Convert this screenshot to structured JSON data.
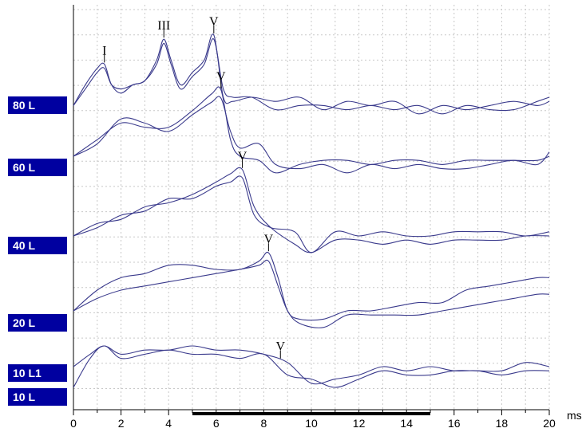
{
  "chart_data": {
    "type": "line",
    "title": "",
    "xlabel": "ms",
    "ylabel": "",
    "xlim": [
      0,
      20
    ],
    "x_ticks": [
      "0",
      "2",
      "4",
      "6",
      "8",
      "10",
      "12",
      "14",
      "16",
      "18",
      "20"
    ],
    "grid": true,
    "analysis_window_ms": [
      5,
      15
    ],
    "series": [
      {
        "name": "80 L",
        "traces": [
          [
            [
              0,
              -2
            ],
            [
              0.5,
              3
            ],
            [
              1,
              7
            ],
            [
              1.3,
              8
            ],
            [
              1.6,
              3
            ],
            [
              2,
              1
            ],
            [
              2.5,
              3
            ],
            [
              3,
              4
            ],
            [
              3.5,
              9
            ],
            [
              3.8,
              14
            ],
            [
              4.1,
              9
            ],
            [
              4.5,
              3
            ],
            [
              5,
              6
            ],
            [
              5.5,
              9
            ],
            [
              5.9,
              15
            ],
            [
              6.3,
              0
            ],
            [
              6.7,
              -1
            ],
            [
              7.5,
              0
            ],
            [
              8.5,
              -1
            ],
            [
              9.5,
              0
            ],
            [
              10.5,
              -3
            ],
            [
              11.5,
              -1
            ],
            [
              12.5,
              -2
            ],
            [
              13.5,
              -1
            ],
            [
              14.5,
              -4
            ],
            [
              15.5,
              -2
            ],
            [
              16.5,
              -3
            ],
            [
              17.5,
              -2
            ],
            [
              18.5,
              -1
            ],
            [
              19.5,
              -2
            ],
            [
              20,
              -1
            ]
          ],
          [
            [
              0,
              -2
            ],
            [
              0.5,
              2
            ],
            [
              1,
              6
            ],
            [
              1.3,
              7
            ],
            [
              1.6,
              3
            ],
            [
              2,
              2
            ],
            [
              2.5,
              3
            ],
            [
              3,
              4
            ],
            [
              3.5,
              8
            ],
            [
              3.8,
              13
            ],
            [
              4.1,
              8
            ],
            [
              4.5,
              2
            ],
            [
              5,
              5
            ],
            [
              5.5,
              8
            ],
            [
              5.9,
              14
            ],
            [
              6.3,
              2
            ],
            [
              6.7,
              0
            ],
            [
              7.5,
              0
            ],
            [
              8.5,
              -3
            ],
            [
              9.5,
              -2
            ],
            [
              10.5,
              -2
            ],
            [
              11.5,
              -3
            ],
            [
              12.5,
              -2
            ],
            [
              13.5,
              -3
            ],
            [
              14.5,
              -2
            ],
            [
              15.5,
              -4
            ],
            [
              16.5,
              -2
            ],
            [
              17.5,
              -3
            ],
            [
              18.5,
              -3
            ],
            [
              19.5,
              -1
            ],
            [
              20,
              0
            ]
          ]
        ]
      },
      {
        "name": "60 L",
        "traces": [
          [
            [
              0,
              0
            ],
            [
              1,
              4
            ],
            [
              2,
              8
            ],
            [
              3,
              7
            ],
            [
              4,
              7
            ],
            [
              5,
              11
            ],
            [
              5.8,
              15
            ],
            [
              6.2,
              16
            ],
            [
              6.6,
              4
            ],
            [
              7,
              0
            ],
            [
              7.8,
              -1
            ],
            [
              8.5,
              -4
            ],
            [
              9.5,
              -2
            ],
            [
              10.5,
              -1
            ],
            [
              11.5,
              -1
            ],
            [
              12.5,
              -2
            ],
            [
              13.5,
              -1
            ],
            [
              14.5,
              -1
            ],
            [
              15.5,
              -2
            ],
            [
              16.5,
              -1
            ],
            [
              17.5,
              -1
            ],
            [
              18.5,
              -1
            ],
            [
              19.5,
              -1
            ],
            [
              20,
              0
            ]
          ],
          [
            [
              0,
              0
            ],
            [
              1,
              3
            ],
            [
              2,
              9
            ],
            [
              3,
              8
            ],
            [
              4,
              6
            ],
            [
              5,
              10
            ],
            [
              5.8,
              13
            ],
            [
              6.2,
              14
            ],
            [
              6.6,
              6
            ],
            [
              7,
              2
            ],
            [
              7.8,
              3
            ],
            [
              8.5,
              -2
            ],
            [
              9.5,
              -3
            ],
            [
              10.5,
              -2
            ],
            [
              11.5,
              -4
            ],
            [
              12.5,
              -2
            ],
            [
              13.5,
              -3
            ],
            [
              14.5,
              -2
            ],
            [
              15.5,
              -3
            ],
            [
              16.5,
              -3
            ],
            [
              17.5,
              -2
            ],
            [
              18.5,
              -1
            ],
            [
              19.5,
              -2
            ],
            [
              20,
              1
            ]
          ]
        ]
      },
      {
        "name": "40 L",
        "traces": [
          [
            [
              0,
              0
            ],
            [
              1,
              3
            ],
            [
              2,
              4
            ],
            [
              3,
              7
            ],
            [
              4,
              8
            ],
            [
              5,
              10
            ],
            [
              6,
              13
            ],
            [
              6.6,
              15
            ],
            [
              7.1,
              16
            ],
            [
              7.6,
              7
            ],
            [
              8.3,
              2
            ],
            [
              9.3,
              -2
            ],
            [
              10,
              -4
            ],
            [
              11,
              -1
            ],
            [
              12,
              -1
            ],
            [
              13,
              -2
            ],
            [
              14,
              -1
            ],
            [
              15,
              -2
            ],
            [
              16,
              -1
            ],
            [
              17,
              -1
            ],
            [
              18,
              -1
            ],
            [
              19,
              0
            ],
            [
              20,
              0
            ]
          ],
          [
            [
              0,
              0
            ],
            [
              1,
              2
            ],
            [
              2,
              5
            ],
            [
              3,
              6
            ],
            [
              4,
              9
            ],
            [
              5,
              9
            ],
            [
              6,
              12
            ],
            [
              6.6,
              13
            ],
            [
              7.1,
              14
            ],
            [
              7.6,
              5
            ],
            [
              8.3,
              2
            ],
            [
              9.3,
              1
            ],
            [
              10,
              -4
            ],
            [
              11,
              1
            ],
            [
              12,
              0
            ],
            [
              13,
              1
            ],
            [
              14,
              0
            ],
            [
              15,
              0
            ],
            [
              16,
              1
            ],
            [
              17,
              1
            ],
            [
              18,
              1
            ],
            [
              19,
              0
            ],
            [
              20,
              1
            ]
          ]
        ]
      },
      {
        "name": "20 L",
        "traces": [
          [
            [
              0,
              0
            ],
            [
              1,
              5
            ],
            [
              2,
              8
            ],
            [
              3,
              9
            ],
            [
              4,
              11
            ],
            [
              5,
              11
            ],
            [
              6,
              10
            ],
            [
              7,
              10
            ],
            [
              7.8,
              12
            ],
            [
              8.2,
              14
            ],
            [
              8.6,
              8
            ],
            [
              9,
              0
            ],
            [
              9.5,
              -2
            ],
            [
              10.5,
              -2
            ],
            [
              11.5,
              0
            ],
            [
              12.5,
              0
            ],
            [
              13.5,
              1
            ],
            [
              14.5,
              2
            ],
            [
              15.5,
              2
            ],
            [
              16.5,
              5
            ],
            [
              17.5,
              6
            ],
            [
              18.5,
              7
            ],
            [
              19.5,
              8
            ],
            [
              20,
              8
            ]
          ],
          [
            [
              0,
              0
            ],
            [
              1,
              3
            ],
            [
              2,
              5
            ],
            [
              3,
              6
            ],
            [
              4,
              7
            ],
            [
              5,
              8
            ],
            [
              6,
              9
            ],
            [
              7,
              10
            ],
            [
              7.8,
              11
            ],
            [
              8.2,
              12
            ],
            [
              8.6,
              6
            ],
            [
              9,
              0
            ],
            [
              9.5,
              -3
            ],
            [
              10.5,
              -4
            ],
            [
              11.5,
              -1
            ],
            [
              12.5,
              -1
            ],
            [
              13.5,
              -1
            ],
            [
              14.5,
              -1
            ],
            [
              15.5,
              0
            ],
            [
              16.5,
              1
            ],
            [
              17.5,
              2
            ],
            [
              18.5,
              3
            ],
            [
              19.5,
              4
            ],
            [
              20,
              4
            ]
          ]
        ]
      },
      {
        "name": "10 L1",
        "traces": [
          [
            [
              0,
              0
            ],
            [
              0.7,
              3
            ],
            [
              1.3,
              5
            ],
            [
              2,
              3
            ],
            [
              3,
              4
            ],
            [
              4,
              4
            ],
            [
              5,
              5
            ],
            [
              6,
              4
            ],
            [
              7,
              4
            ],
            [
              8,
              3
            ],
            [
              9,
              1
            ],
            [
              10,
              -4
            ],
            [
              11,
              -3
            ],
            [
              12,
              -2
            ],
            [
              13,
              0
            ],
            [
              14,
              -1
            ],
            [
              15,
              0
            ],
            [
              16,
              -1
            ],
            [
              17,
              -1
            ],
            [
              18,
              -2
            ],
            [
              19,
              -1
            ],
            [
              20,
              -1
            ]
          ],
          [
            [
              0,
              -5
            ],
            [
              0.7,
              2
            ],
            [
              1.3,
              5
            ],
            [
              2,
              2
            ],
            [
              3,
              3
            ],
            [
              4,
              4
            ],
            [
              5,
              3
            ],
            [
              6,
              3
            ],
            [
              7,
              2
            ],
            [
              8,
              3
            ],
            [
              9,
              -2
            ],
            [
              10,
              -3
            ],
            [
              11,
              -5
            ],
            [
              12,
              -3
            ],
            [
              13,
              -1
            ],
            [
              14,
              -2
            ],
            [
              15,
              -2
            ],
            [
              16,
              -1
            ],
            [
              17,
              -1
            ],
            [
              18,
              -1
            ],
            [
              19,
              1
            ],
            [
              20,
              0
            ]
          ]
        ]
      }
    ],
    "peak_markers": [
      {
        "label": "I",
        "trace": "80 L",
        "x": 1.3
      },
      {
        "label": "III",
        "trace": "80 L",
        "x": 3.8
      },
      {
        "label": "V",
        "trace": "80 L",
        "x": 5.9
      },
      {
        "label": "V",
        "trace": "60 L",
        "x": 6.2
      },
      {
        "label": "V",
        "trace": "40 L",
        "x": 7.1
      },
      {
        "label": "V",
        "trace": "20 L",
        "x": 8.2
      },
      {
        "label": "V",
        "trace": "10 L1",
        "x": 8.7
      }
    ],
    "level_labels": [
      "80 L",
      "60 L",
      "40 L",
      "20 L",
      "10 L1",
      "10 L"
    ],
    "colors": {
      "trace": "#3a3a8c",
      "label_box": "#0000a0",
      "label_text": "#ffffff",
      "grid": "#c8c8c8"
    }
  }
}
